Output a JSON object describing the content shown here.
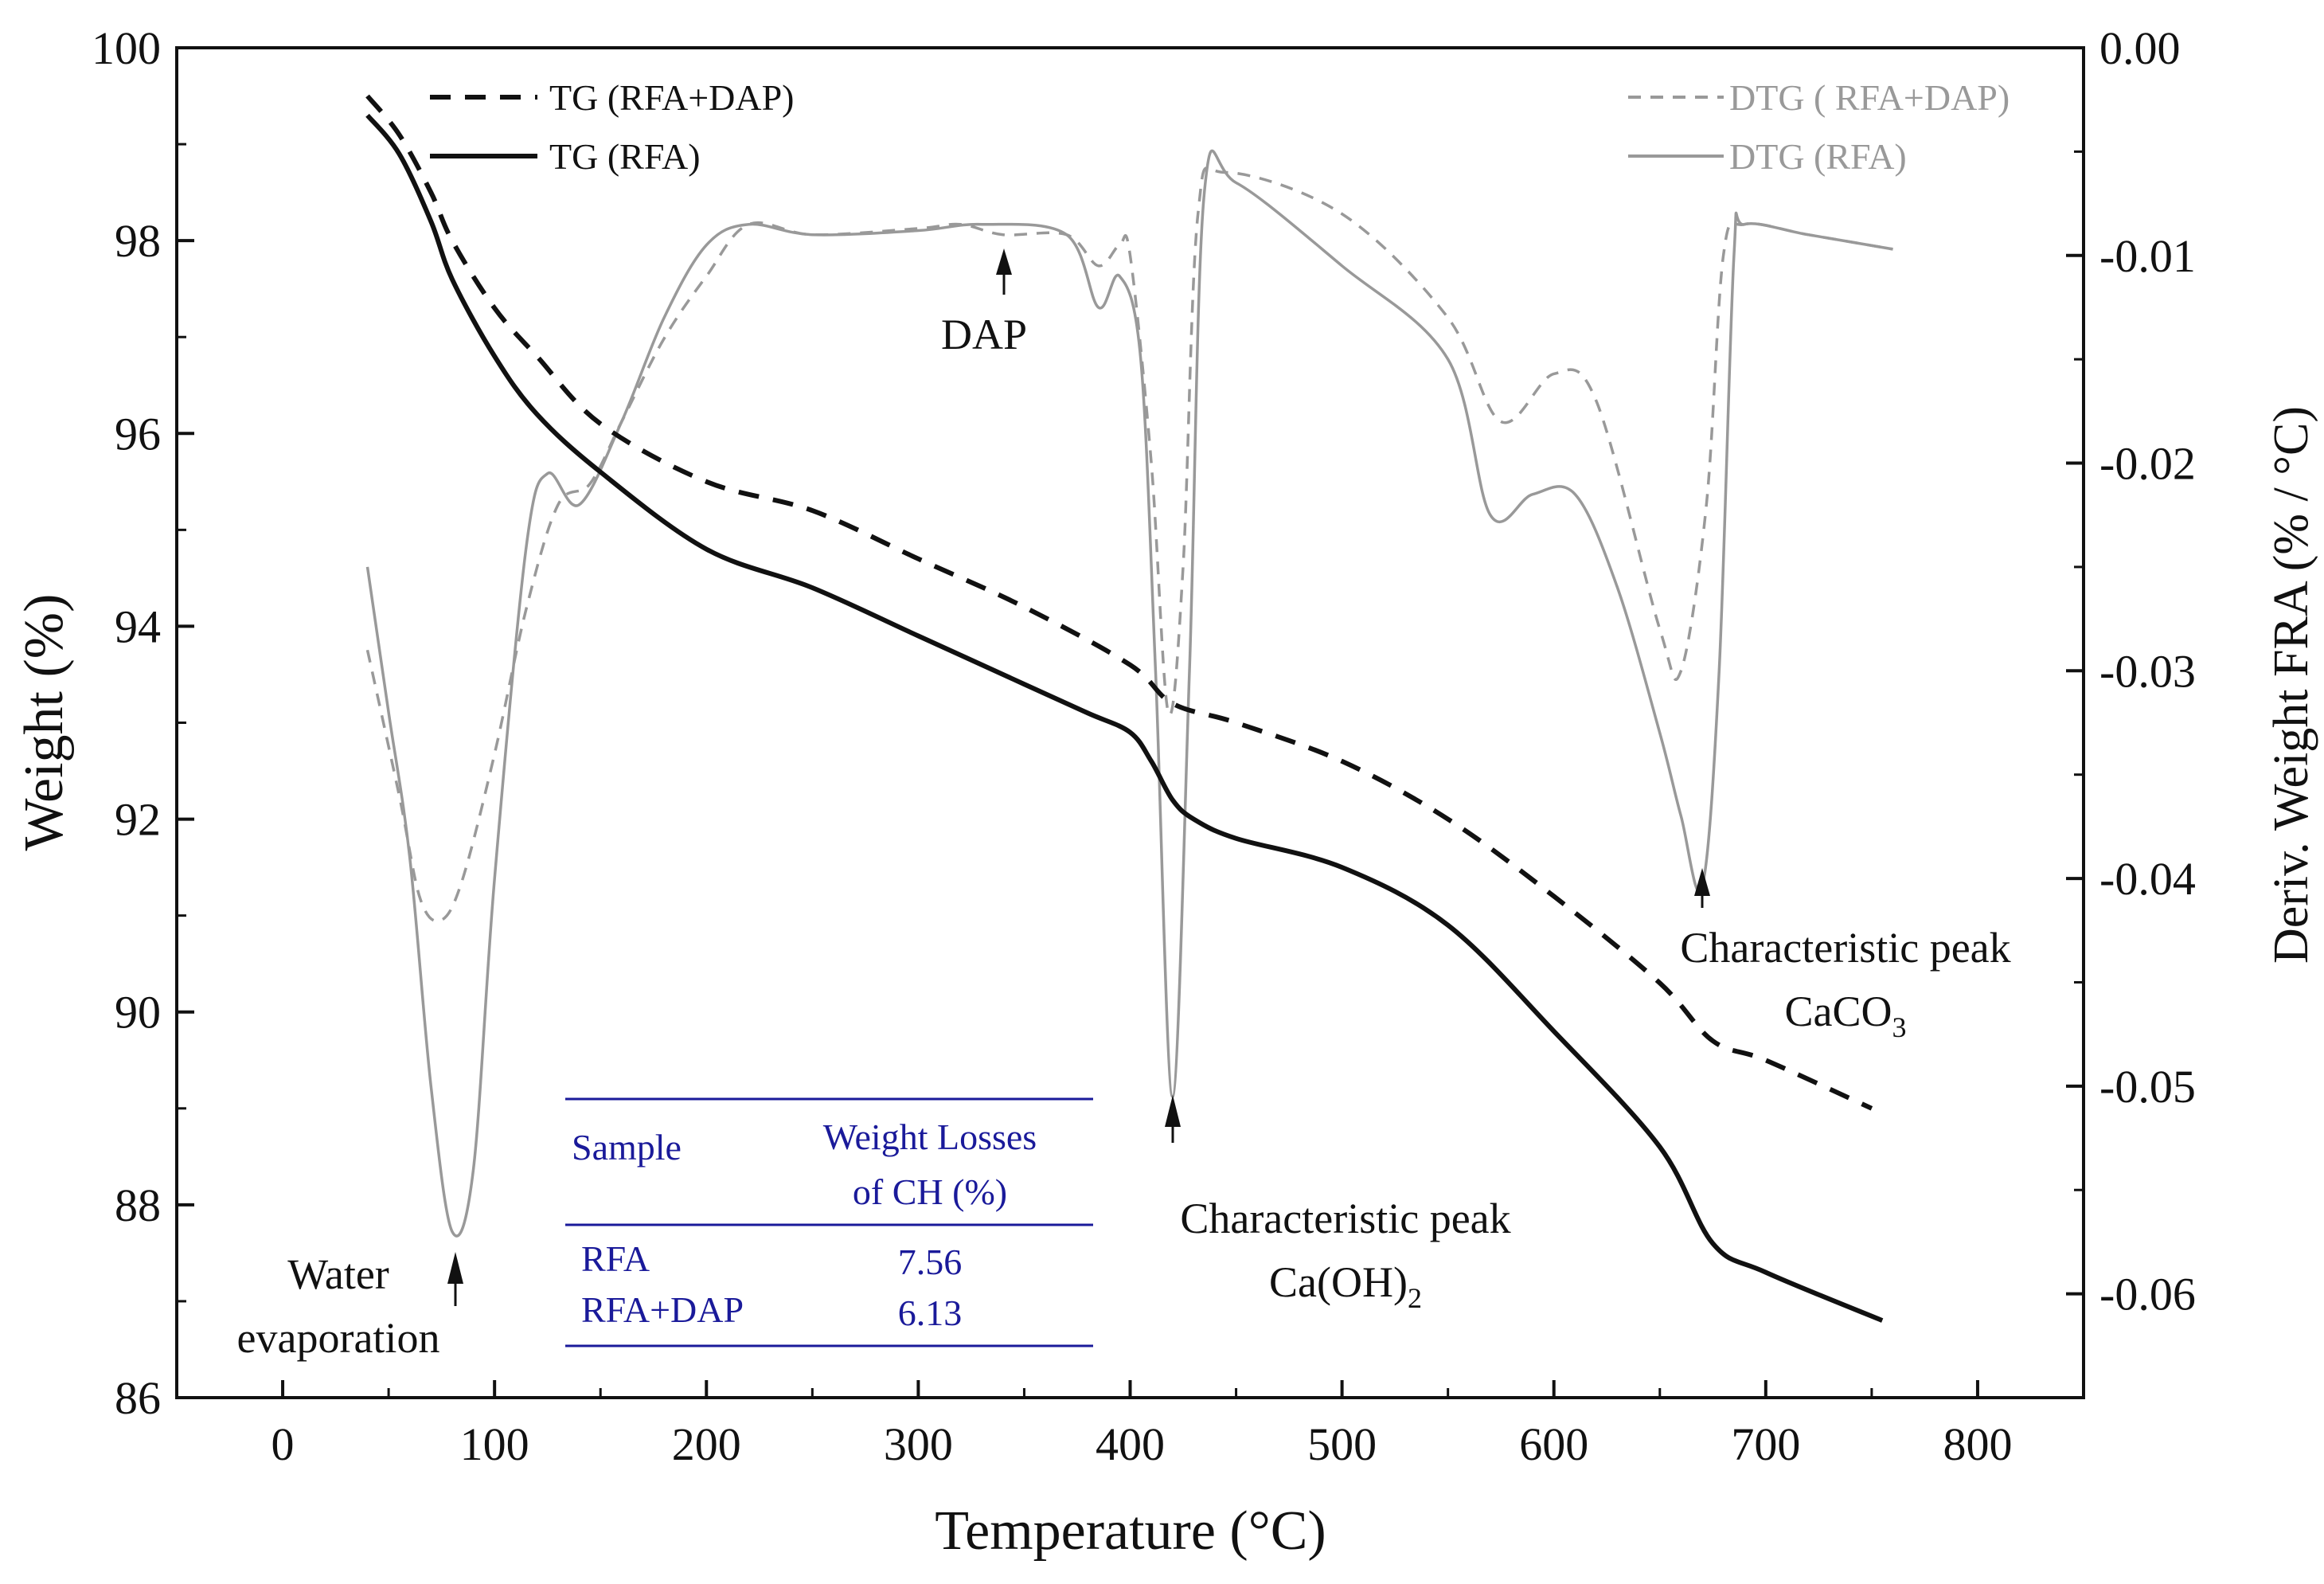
{
  "chart_data": {
    "type": "line",
    "xlabel": "Temperature (°C)",
    "ylabel": "Weight (%)",
    "y2label": "Deriv. Weight FRA (% / °C)",
    "xlim": [
      -50,
      850
    ],
    "ylim": [
      86,
      100
    ],
    "y2lim": [
      -0.065,
      0.0
    ],
    "x_ticks": [
      0,
      100,
      200,
      300,
      400,
      500,
      600,
      700,
      800
    ],
    "x_tick_labels": [
      "0",
      "100",
      "200",
      "300",
      "400",
      "500",
      "600",
      "700",
      "800"
    ],
    "y_ticks": [
      86,
      88,
      90,
      92,
      94,
      96,
      98,
      100
    ],
    "y_tick_labels": [
      "86",
      "88",
      "90",
      "92",
      "94",
      "96",
      "98",
      "100"
    ],
    "y2_ticks": [
      0.0,
      -0.01,
      -0.02,
      -0.03,
      -0.04,
      -0.05,
      -0.06
    ],
    "y2_tick_labels": [
      "0.00",
      "-0.01",
      "-0.02",
      "-0.03",
      "-0.04",
      "-0.05",
      "-0.06"
    ],
    "grid": false,
    "series": [
      {
        "name": "TG (RFA+DAP)",
        "axis": "left",
        "style": "dashed",
        "color": "#111111",
        "points": [
          [
            40,
            99.5
          ],
          [
            55,
            99.1
          ],
          [
            70,
            98.5
          ],
          [
            80,
            98.0
          ],
          [
            100,
            97.3
          ],
          [
            120,
            96.8
          ],
          [
            150,
            96.1
          ],
          [
            200,
            95.5
          ],
          [
            250,
            95.2
          ],
          [
            300,
            94.7
          ],
          [
            350,
            94.2
          ],
          [
            400,
            93.6
          ],
          [
            420,
            93.2
          ],
          [
            450,
            93.0
          ],
          [
            500,
            92.6
          ],
          [
            550,
            92.0
          ],
          [
            600,
            91.2
          ],
          [
            650,
            90.3
          ],
          [
            675,
            89.7
          ],
          [
            700,
            89.5
          ],
          [
            750,
            89.0
          ]
        ]
      },
      {
        "name": "TG (RFA)",
        "axis": "left",
        "style": "solid",
        "color": "#111111",
        "points": [
          [
            40,
            99.3
          ],
          [
            55,
            98.9
          ],
          [
            70,
            98.2
          ],
          [
            80,
            97.6
          ],
          [
            100,
            96.8
          ],
          [
            120,
            96.2
          ],
          [
            150,
            95.6
          ],
          [
            200,
            94.8
          ],
          [
            250,
            94.4
          ],
          [
            300,
            93.9
          ],
          [
            350,
            93.4
          ],
          [
            380,
            93.1
          ],
          [
            400,
            92.9
          ],
          [
            410,
            92.6
          ],
          [
            420,
            92.2
          ],
          [
            430,
            92.0
          ],
          [
            450,
            91.8
          ],
          [
            500,
            91.5
          ],
          [
            550,
            90.9
          ],
          [
            600,
            89.8
          ],
          [
            650,
            88.6
          ],
          [
            675,
            87.6
          ],
          [
            700,
            87.3
          ],
          [
            755,
            86.8
          ]
        ]
      },
      {
        "name": "DTG ( RFA+DAP)",
        "axis": "right",
        "style": "dashed",
        "color": "#999999",
        "points": [
          [
            40,
            -0.029
          ],
          [
            55,
            -0.036
          ],
          [
            65,
            -0.041
          ],
          [
            75,
            -0.042
          ],
          [
            85,
            -0.04
          ],
          [
            100,
            -0.034
          ],
          [
            115,
            -0.027
          ],
          [
            130,
            -0.022
          ],
          [
            145,
            -0.021
          ],
          [
            160,
            -0.018
          ],
          [
            180,
            -0.014
          ],
          [
            200,
            -0.011
          ],
          [
            220,
            -0.0085
          ],
          [
            250,
            -0.009
          ],
          [
            300,
            -0.0087
          ],
          [
            320,
            -0.0085
          ],
          [
            340,
            -0.009
          ],
          [
            370,
            -0.009
          ],
          [
            385,
            -0.0105
          ],
          [
            395,
            -0.0095
          ],
          [
            400,
            -0.01
          ],
          [
            410,
            -0.02
          ],
          [
            418,
            -0.032
          ],
          [
            425,
            -0.025
          ],
          [
            432,
            -0.008
          ],
          [
            445,
            -0.006
          ],
          [
            500,
            -0.008
          ],
          [
            550,
            -0.013
          ],
          [
            575,
            -0.018
          ],
          [
            600,
            -0.0157
          ],
          [
            620,
            -0.017
          ],
          [
            650,
            -0.028
          ],
          [
            660,
            -0.03
          ],
          [
            672,
            -0.022
          ],
          [
            680,
            -0.01
          ],
          [
            690,
            -0.0085
          ],
          [
            720,
            -0.009
          ],
          [
            760,
            -0.0097
          ]
        ]
      },
      {
        "name": "DTG (RFA)",
        "axis": "right",
        "style": "solid",
        "color": "#999999",
        "points": [
          [
            40,
            -0.025
          ],
          [
            50,
            -0.032
          ],
          [
            60,
            -0.039
          ],
          [
            70,
            -0.05
          ],
          [
            80,
            -0.057
          ],
          [
            90,
            -0.054
          ],
          [
            100,
            -0.04
          ],
          [
            115,
            -0.024
          ],
          [
            125,
            -0.0205
          ],
          [
            140,
            -0.022
          ],
          [
            160,
            -0.018
          ],
          [
            180,
            -0.013
          ],
          [
            200,
            -0.0095
          ],
          [
            220,
            -0.0085
          ],
          [
            250,
            -0.009
          ],
          [
            300,
            -0.0088
          ],
          [
            330,
            -0.0085
          ],
          [
            370,
            -0.009
          ],
          [
            385,
            -0.0125
          ],
          [
            395,
            -0.011
          ],
          [
            405,
            -0.015
          ],
          [
            412,
            -0.03
          ],
          [
            420,
            -0.0505
          ],
          [
            428,
            -0.03
          ],
          [
            435,
            -0.007
          ],
          [
            450,
            -0.0065
          ],
          [
            500,
            -0.0105
          ],
          [
            550,
            -0.015
          ],
          [
            570,
            -0.0225
          ],
          [
            590,
            -0.0215
          ],
          [
            610,
            -0.0215
          ],
          [
            630,
            -0.026
          ],
          [
            650,
            -0.033
          ],
          [
            660,
            -0.037
          ],
          [
            670,
            -0.0404
          ],
          [
            678,
            -0.03
          ],
          [
            685,
            -0.01
          ],
          [
            690,
            -0.0085
          ],
          [
            720,
            -0.009
          ],
          [
            760,
            -0.0097
          ]
        ]
      }
    ],
    "annotations": [
      {
        "lines": [
          "DAP"
        ],
        "x": 340
      },
      {
        "lines": [
          "Water",
          "evaporation"
        ],
        "x": 80
      },
      {
        "lines": [
          "Characteristic peak",
          "Ca(OH)",
          "2"
        ],
        "x": 420
      },
      {
        "lines": [
          "Characteristic peak",
          "CaCO",
          "3"
        ],
        "x": 670
      }
    ],
    "legend": {
      "left": "top-left",
      "right": "top-right"
    },
    "inset_table": {
      "headers": [
        "Sample",
        "Weight Losses",
        "of CH (%)"
      ],
      "rows": [
        [
          "RFA",
          "7.56"
        ],
        [
          "RFA+DAP",
          "6.13"
        ]
      ],
      "color": "#1a1a9a"
    }
  }
}
